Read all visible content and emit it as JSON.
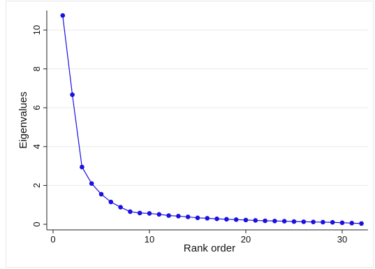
{
  "chart_data": {
    "type": "line",
    "title": "",
    "xlabel": "Rank order",
    "ylabel": "Eigenvalues",
    "xlim": [
      0,
      32
    ],
    "ylim": [
      0,
      11
    ],
    "xticks": [
      0,
      10,
      20,
      30
    ],
    "yticks": [
      0,
      2,
      4,
      6,
      8,
      10
    ],
    "grid": true,
    "legend": "none",
    "series": [
      {
        "x": [
          1,
          2,
          3,
          4,
          5,
          6,
          7,
          8,
          9,
          10,
          11,
          12,
          13,
          14,
          15,
          16,
          17,
          18,
          19,
          20,
          21,
          22,
          23,
          24,
          25,
          26,
          27,
          28,
          29,
          30,
          31,
          32
        ],
        "values": [
          10.75,
          6.67,
          2.95,
          2.1,
          1.55,
          1.15,
          0.88,
          0.65,
          0.58,
          0.56,
          0.51,
          0.45,
          0.42,
          0.38,
          0.33,
          0.31,
          0.28,
          0.26,
          0.24,
          0.22,
          0.2,
          0.18,
          0.17,
          0.16,
          0.14,
          0.13,
          0.12,
          0.11,
          0.1,
          0.08,
          0.06,
          0.04
        ],
        "color": "#1a10e0"
      }
    ]
  }
}
